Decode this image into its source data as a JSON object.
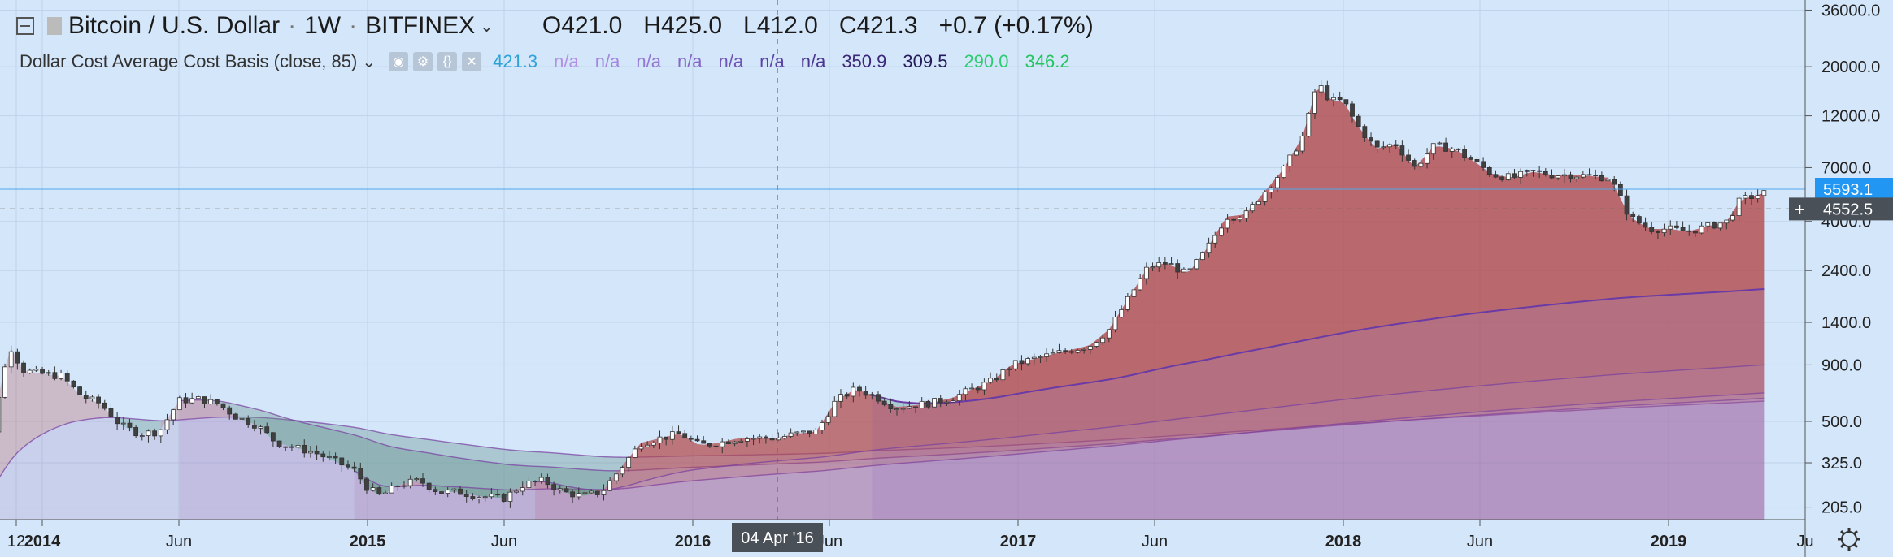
{
  "header": {
    "symbol": "Bitcoin / U.S. Dollar",
    "interval": "1W",
    "exchange": "BITFINEX",
    "ohlc": {
      "open": "O421.0",
      "high": "H425.0",
      "low": "L412.0",
      "close": "C421.3",
      "change": "+0.7 (+0.17%)"
    },
    "indicator_name": "Dollar Cost Average Cost Basis (close, 85)",
    "indicator_values": [
      {
        "text": "421.3",
        "color": "#2ea3d8"
      },
      {
        "text": "n/a",
        "color": "#b38fe6"
      },
      {
        "text": "n/a",
        "color": "#a386e0"
      },
      {
        "text": "n/a",
        "color": "#9478d6"
      },
      {
        "text": "n/a",
        "color": "#8466c9"
      },
      {
        "text": "n/a",
        "color": "#7055b8"
      },
      {
        "text": "n/a",
        "color": "#5c44a6"
      },
      {
        "text": "n/a",
        "color": "#4a3690"
      },
      {
        "text": "350.9",
        "color": "#3b287a"
      },
      {
        "text": "309.5",
        "color": "#261b5c"
      },
      {
        "text": "290.0",
        "color": "#2ecc71"
      },
      {
        "text": "346.2",
        "color": "#22c55e"
      }
    ]
  },
  "crosshair_date": "04 Apr '16",
  "price_labels": {
    "current": "5593.1",
    "crosshair": "4552.5"
  },
  "colors": {
    "background": "#d4e6f9",
    "up_candle": "#ffffff",
    "down_candle": "#404040",
    "red_band": "#b24a4a",
    "green_band": "#2fb86a",
    "purple_line": "#6a3aa6",
    "price_label": "#2196f3",
    "crosshair_label": "#4a5058"
  },
  "chart_data": {
    "type": "candlestick",
    "scale": "log",
    "y_ticks": [
      205.0,
      325.0,
      500.0,
      900.0,
      1400.0,
      2400.0,
      4000.0,
      7000.0,
      12000.0,
      20000.0,
      36000.0
    ],
    "y_tick_labels": [
      "205.0",
      "325.0",
      "500.0",
      "900.0",
      "1400.0",
      "2400.0",
      "4000.0",
      "7000.0",
      "12000.0",
      "20000.0",
      "36000.0"
    ],
    "x_ticks": [
      {
        "label": "12",
        "t": 2013.92,
        "bold": false
      },
      {
        "label": "2014",
        "t": 2014.0,
        "bold": true
      },
      {
        "label": "Jun",
        "t": 2014.42,
        "bold": false
      },
      {
        "label": "2015",
        "t": 2015.0,
        "bold": true
      },
      {
        "label": "Jun",
        "t": 2015.42,
        "bold": false
      },
      {
        "label": "2016",
        "t": 2016.0,
        "bold": true
      },
      {
        "label": "Jun",
        "t": 2016.42,
        "bold": false
      },
      {
        "label": "2017",
        "t": 2017.0,
        "bold": true
      },
      {
        "label": "Jun",
        "t": 2017.42,
        "bold": false
      },
      {
        "label": "2018",
        "t": 2018.0,
        "bold": true
      },
      {
        "label": "Jun",
        "t": 2018.42,
        "bold": false
      },
      {
        "label": "2019",
        "t": 2019.0,
        "bold": true
      },
      {
        "label": "Ju",
        "t": 2019.42,
        "bold": false
      }
    ],
    "x_range": [
      2013.87,
      2019.42
    ],
    "y_range": [
      180,
      40000
    ],
    "crosshair": {
      "t": 2016.26,
      "price": 4552.5
    },
    "current_price": 5593.1,
    "price_path": [
      [
        2013.77,
        190
      ],
      [
        2013.82,
        240
      ],
      [
        2013.86,
        600
      ],
      [
        2013.9,
        1100
      ],
      [
        2013.94,
        850
      ],
      [
        2014.0,
        820
      ],
      [
        2014.06,
        800
      ],
      [
        2014.12,
        650
      ],
      [
        2014.18,
        600
      ],
      [
        2014.24,
        480
      ],
      [
        2014.3,
        440
      ],
      [
        2014.36,
        450
      ],
      [
        2014.42,
        620
      ],
      [
        2014.48,
        630
      ],
      [
        2014.54,
        600
      ],
      [
        2014.6,
        520
      ],
      [
        2014.66,
        480
      ],
      [
        2014.72,
        400
      ],
      [
        2014.78,
        380
      ],
      [
        2014.84,
        360
      ],
      [
        2014.9,
        330
      ],
      [
        2014.96,
        300
      ],
      [
        2015.0,
        250
      ],
      [
        2015.04,
        230
      ],
      [
        2015.1,
        260
      ],
      [
        2015.16,
        270
      ],
      [
        2015.22,
        240
      ],
      [
        2015.28,
        240
      ],
      [
        2015.34,
        230
      ],
      [
        2015.42,
        225
      ],
      [
        2015.48,
        260
      ],
      [
        2015.54,
        270
      ],
      [
        2015.6,
        240
      ],
      [
        2015.66,
        230
      ],
      [
        2015.72,
        240
      ],
      [
        2015.78,
        310
      ],
      [
        2015.84,
        400
      ],
      [
        2015.9,
        420
      ],
      [
        2015.96,
        440
      ],
      [
        2016.02,
        390
      ],
      [
        2016.08,
        400
      ],
      [
        2016.14,
        420
      ],
      [
        2016.2,
        420
      ],
      [
        2016.26,
        421
      ],
      [
        2016.32,
        440
      ],
      [
        2016.38,
        450
      ],
      [
        2016.44,
        620
      ],
      [
        2016.5,
        700
      ],
      [
        2016.56,
        650
      ],
      [
        2016.62,
        580
      ],
      [
        2016.68,
        590
      ],
      [
        2016.74,
        610
      ],
      [
        2016.8,
        640
      ],
      [
        2016.86,
        700
      ],
      [
        2016.92,
        760
      ],
      [
        2016.98,
        900
      ],
      [
        2017.04,
        950
      ],
      [
        2017.1,
        1000
      ],
      [
        2017.16,
        1050
      ],
      [
        2017.22,
        1100
      ],
      [
        2017.28,
        1300
      ],
      [
        2017.34,
        1800
      ],
      [
        2017.4,
        2500
      ],
      [
        2017.46,
        2600
      ],
      [
        2017.52,
        2300
      ],
      [
        2017.58,
        3000
      ],
      [
        2017.64,
        4200
      ],
      [
        2017.7,
        4300
      ],
      [
        2017.76,
        5500
      ],
      [
        2017.82,
        7000
      ],
      [
        2017.88,
        10000
      ],
      [
        2017.92,
        17000
      ],
      [
        2017.96,
        14000
      ],
      [
        2018.0,
        14000
      ],
      [
        2018.04,
        11000
      ],
      [
        2018.1,
        8500
      ],
      [
        2018.16,
        9000
      ],
      [
        2018.22,
        7000
      ],
      [
        2018.28,
        8800
      ],
      [
        2018.34,
        8500
      ],
      [
        2018.4,
        7500
      ],
      [
        2018.46,
        6500
      ],
      [
        2018.52,
        6300
      ],
      [
        2018.58,
        6700
      ],
      [
        2018.64,
        6500
      ],
      [
        2018.7,
        6500
      ],
      [
        2018.76,
        6400
      ],
      [
        2018.82,
        6300
      ],
      [
        2018.88,
        4200
      ],
      [
        2018.94,
        3700
      ],
      [
        2019.0,
        3700
      ],
      [
        2019.06,
        3600
      ],
      [
        2019.12,
        3800
      ],
      [
        2019.18,
        4000
      ],
      [
        2019.22,
        5000
      ],
      [
        2019.26,
        5200
      ],
      [
        2019.3,
        5400
      ]
    ]
  }
}
